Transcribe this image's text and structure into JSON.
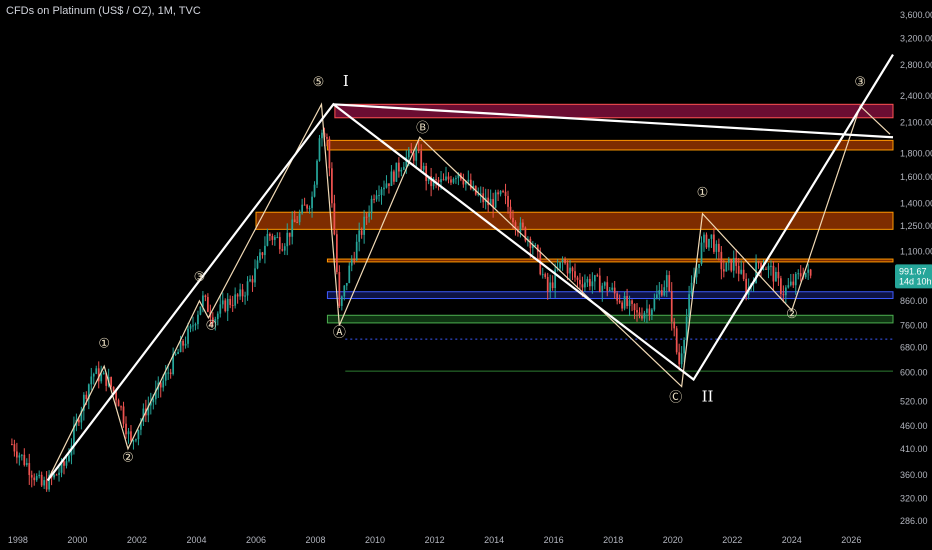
{
  "title": "CFDs on Platinum (US$ / OZ), 1M, TVC",
  "price_badge": {
    "value": "991.67",
    "countdown": "14d 10h",
    "color": "#26a69a"
  },
  "chart_data": {
    "type": "candlestick",
    "title": "CFDs on Platinum (US$ / OZ), 1M, TVC",
    "y_scale": "log",
    "ylim": [
      280,
      3800
    ],
    "xlim": [
      1997.4,
      2027.4
    ],
    "y_ticks": [
      286.0,
      320.0,
      360.0,
      410.0,
      460.0,
      520.0,
      600.0,
      680.0,
      760.0,
      860.0,
      1100.0,
      1250.0,
      1400.0,
      1600.0,
      1800.0,
      2100.0,
      2400.0,
      2800.0,
      3200.0,
      3600.0
    ],
    "y_tick_labels": [
      "286.00",
      "320.00",
      "360.00",
      "410.00",
      "460.00",
      "520.00",
      "600.00",
      "680.00",
      "760.00",
      "860.00",
      "1,100.00",
      "1,250.00",
      "1,400.00",
      "1,600.00",
      "1,800.00",
      "2,100.00",
      "2,400.00",
      "2,800.00",
      "3,200.00",
      "3,600.00"
    ],
    "x_ticks": [
      1998,
      2000,
      2002,
      2004,
      2006,
      2008,
      2010,
      2012,
      2014,
      2016,
      2018,
      2020,
      2022,
      2024,
      2026
    ],
    "x_tick_labels": [
      "1998",
      "2000",
      "2002",
      "2004",
      "2006",
      "2008",
      "2010",
      "2012",
      "2014",
      "2016",
      "2018",
      "2020",
      "2022",
      "2024",
      "2026"
    ],
    "colors": {
      "up": "#26a69a",
      "down": "#ef5350"
    },
    "price_path": [
      [
        1997.8,
        420
      ],
      [
        1998.3,
        380
      ],
      [
        1998.8,
        340
      ],
      [
        1999.2,
        355
      ],
      [
        1999.6,
        380
      ],
      [
        2000.1,
        500
      ],
      [
        2000.5,
        600
      ],
      [
        2001.0,
        580
      ],
      [
        2001.4,
        520
      ],
      [
        2001.8,
        420
      ],
      [
        2002.3,
        500
      ],
      [
        2002.8,
        560
      ],
      [
        2003.3,
        650
      ],
      [
        2003.8,
        740
      ],
      [
        2004.2,
        870
      ],
      [
        2004.6,
        790
      ],
      [
        2005.0,
        850
      ],
      [
        2005.5,
        880
      ],
      [
        2006.0,
        1000
      ],
      [
        2006.4,
        1200
      ],
      [
        2006.9,
        1150
      ],
      [
        2007.4,
        1300
      ],
      [
        2007.9,
        1450
      ],
      [
        2008.15,
        2050
      ],
      [
        2008.4,
        1900
      ],
      [
        2008.6,
        1300
      ],
      [
        2008.8,
        820
      ],
      [
        2009.2,
        1050
      ],
      [
        2009.6,
        1250
      ],
      [
        2010.0,
        1500
      ],
      [
        2010.5,
        1580
      ],
      [
        2011.0,
        1750
      ],
      [
        2011.4,
        1800
      ],
      [
        2011.8,
        1550
      ],
      [
        2012.3,
        1550
      ],
      [
        2012.8,
        1650
      ],
      [
        2013.3,
        1480
      ],
      [
        2013.8,
        1400
      ],
      [
        2014.3,
        1450
      ],
      [
        2014.8,
        1250
      ],
      [
        2015.3,
        1150
      ],
      [
        2015.8,
        900
      ],
      [
        2016.3,
        1050
      ],
      [
        2016.8,
        950
      ],
      [
        2017.3,
        950
      ],
      [
        2017.8,
        920
      ],
      [
        2018.3,
        860
      ],
      [
        2018.8,
        800
      ],
      [
        2019.3,
        840
      ],
      [
        2019.8,
        960
      ],
      [
        2020.2,
        620
      ],
      [
        2020.6,
        900
      ],
      [
        2021.0,
        1150
      ],
      [
        2021.3,
        1180
      ],
      [
        2021.7,
        1000
      ],
      [
        2022.1,
        1050
      ],
      [
        2022.5,
        900
      ],
      [
        2022.9,
        1050
      ],
      [
        2023.3,
        1000
      ],
      [
        2023.7,
        900
      ],
      [
        2024.0,
        930
      ],
      [
        2024.4,
        1000
      ],
      [
        2024.7,
        960
      ]
    ],
    "elliott_white_path": [
      [
        1999.0,
        350
      ],
      [
        2008.6,
        2300
      ],
      [
        2020.7,
        580
      ],
      [
        2027.4,
        2950
      ]
    ],
    "elliott_white_lines": [
      {
        "from": [
          2008.6,
          2300
        ],
        "to": [
          2027.4,
          1950
        ]
      }
    ],
    "elliott_tan_path": [
      [
        1999.0,
        350
      ],
      [
        2000.9,
        620
      ],
      [
        2001.7,
        410
      ],
      [
        2004.1,
        860
      ],
      [
        2004.4,
        790
      ],
      [
        2008.2,
        2300
      ],
      [
        2008.8,
        760
      ],
      [
        2011.5,
        1950
      ],
      [
        2020.3,
        560
      ],
      [
        2021.0,
        1330
      ],
      [
        2024.0,
        820
      ],
      [
        2026.3,
        2280
      ],
      [
        2027.3,
        1980
      ]
    ],
    "wave_labels": [
      {
        "text": "①",
        "x": 2000.9,
        "y": 680
      },
      {
        "text": "②",
        "x": 2001.7,
        "y": 385
      },
      {
        "text": "③",
        "x": 2004.1,
        "y": 950
      },
      {
        "text": "④",
        "x": 2004.5,
        "y": 745
      },
      {
        "text": "⑤",
        "x": 2008.1,
        "y": 2520
      },
      {
        "text": "Ⓐ",
        "x": 2008.8,
        "y": 720
      },
      {
        "text": "Ⓑ",
        "x": 2011.6,
        "y": 2000
      },
      {
        "text": "Ⓒ",
        "x": 2020.1,
        "y": 520
      },
      {
        "text": "①",
        "x": 2021.0,
        "y": 1450
      },
      {
        "text": "②",
        "x": 2024.0,
        "y": 790
      },
      {
        "text": "③",
        "x": 2026.3,
        "y": 2520
      }
    ],
    "roman_labels": [
      {
        "text": "I",
        "x": 2008.65,
        "y": 2520
      },
      {
        "text": "II",
        "x": 2020.7,
        "y": 520
      }
    ],
    "zones": [
      {
        "from": 2150,
        "to": 2300,
        "color": "#c2185b",
        "edge": "#ff5252"
      },
      {
        "from": 1830,
        "to": 1920,
        "color": "#e65100",
        "edge": "#ff9800"
      },
      {
        "from": 1230,
        "to": 1340,
        "color": "#e65100",
        "edge": "#ff9800"
      },
      {
        "from": 1045,
        "to": 1060,
        "color": "#e65100",
        "edge": "#ff9800"
      },
      {
        "from": 870,
        "to": 900,
        "color": "#1a237e",
        "edge": "#3d5afe"
      },
      {
        "from": 770,
        "to": 800,
        "color": "#1b5e20",
        "edge": "#4caf50"
      }
    ],
    "levels": [
      {
        "y": 710,
        "color": "#3d5afe",
        "style": "dotted"
      },
      {
        "y": 605,
        "color": "#2e7d32",
        "style": "solid"
      }
    ]
  }
}
